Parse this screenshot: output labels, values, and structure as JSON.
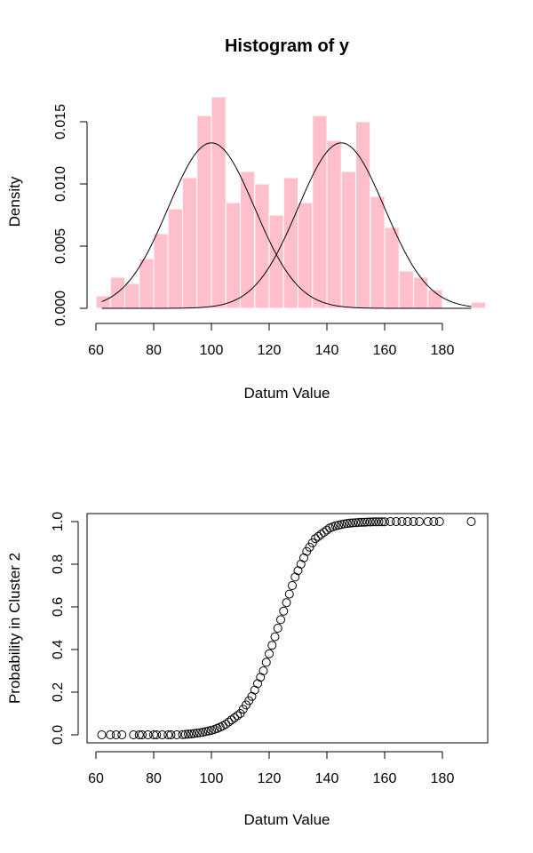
{
  "chart_data": [
    {
      "type": "bar",
      "title": "Histogram of y",
      "xlabel": "Datum Value",
      "ylabel": "Density",
      "xlim": [
        60,
        195
      ],
      "ylim": [
        0,
        0.017
      ],
      "xticks": [
        "60",
        "80",
        "100",
        "120",
        "140",
        "160",
        "180"
      ],
      "yticks": [
        "0.000",
        "0.005",
        "0.010",
        "0.015"
      ],
      "bar_color": "#ffc0cb",
      "bin_width": 5,
      "bins": [
        {
          "start": 60,
          "end": 65,
          "density": 0.001
        },
        {
          "start": 65,
          "end": 70,
          "density": 0.0025
        },
        {
          "start": 70,
          "end": 75,
          "density": 0.002
        },
        {
          "start": 75,
          "end": 80,
          "density": 0.004
        },
        {
          "start": 80,
          "end": 85,
          "density": 0.006
        },
        {
          "start": 85,
          "end": 90,
          "density": 0.008
        },
        {
          "start": 90,
          "end": 95,
          "density": 0.0105
        },
        {
          "start": 95,
          "end": 100,
          "density": 0.0155
        },
        {
          "start": 100,
          "end": 105,
          "density": 0.017
        },
        {
          "start": 105,
          "end": 110,
          "density": 0.0085
        },
        {
          "start": 110,
          "end": 115,
          "density": 0.011
        },
        {
          "start": 115,
          "end": 120,
          "density": 0.01
        },
        {
          "start": 120,
          "end": 125,
          "density": 0.0075
        },
        {
          "start": 125,
          "end": 130,
          "density": 0.0105
        },
        {
          "start": 130,
          "end": 135,
          "density": 0.0085
        },
        {
          "start": 135,
          "end": 140,
          "density": 0.0155
        },
        {
          "start": 140,
          "end": 145,
          "density": 0.0135
        },
        {
          "start": 145,
          "end": 150,
          "density": 0.011
        },
        {
          "start": 150,
          "end": 155,
          "density": 0.015
        },
        {
          "start": 155,
          "end": 160,
          "density": 0.009
        },
        {
          "start": 160,
          "end": 165,
          "density": 0.0065
        },
        {
          "start": 165,
          "end": 170,
          "density": 0.003
        },
        {
          "start": 170,
          "end": 175,
          "density": 0.0025
        },
        {
          "start": 175,
          "end": 180,
          "density": 0.0015
        },
        {
          "start": 180,
          "end": 185,
          "density": 0
        },
        {
          "start": 185,
          "end": 190,
          "density": 0
        },
        {
          "start": 190,
          "end": 195,
          "density": 0.0005
        }
      ],
      "curves": [
        {
          "type": "normal_density",
          "mean": 100,
          "sd": 15,
          "weight": 0.5,
          "x_range": [
            62,
            190
          ]
        },
        {
          "type": "normal_density",
          "mean": 145,
          "sd": 15,
          "weight": 0.5,
          "x_range": [
            62,
            190
          ]
        }
      ]
    },
    {
      "type": "scatter",
      "title": "",
      "xlabel": "Datum Value",
      "ylabel": "Probability in Cluster 2",
      "xlim": [
        60,
        195
      ],
      "ylim": [
        0,
        1
      ],
      "xticks": [
        "60",
        "80",
        "100",
        "120",
        "140",
        "160",
        "180"
      ],
      "yticks": [
        "0.0",
        "0.2",
        "0.4",
        "0.6",
        "0.8",
        "1.0"
      ],
      "marker": "open-circle",
      "x": [
        62,
        65,
        67,
        69,
        73,
        75,
        76,
        78,
        80,
        81,
        83,
        85,
        86,
        88,
        90,
        91,
        92,
        93,
        94,
        95,
        96,
        97,
        98,
        99,
        100,
        101,
        102,
        103,
        104,
        105,
        106,
        107,
        108,
        109,
        110,
        111,
        112,
        113,
        114,
        115,
        116,
        117,
        118,
        119,
        120,
        121,
        122,
        123,
        124,
        125,
        126,
        127,
        128,
        129,
        130,
        131,
        132,
        133,
        134,
        135,
        136,
        137,
        138,
        139,
        140,
        141,
        142,
        143,
        144,
        145,
        146,
        147,
        148,
        149,
        150,
        151,
        152,
        153,
        154,
        155,
        156,
        157,
        158,
        159,
        160,
        162,
        164,
        166,
        168,
        170,
        172,
        175,
        177,
        179,
        190
      ],
      "y": [
        0.0,
        0.0,
        0.0,
        0.0,
        0.0,
        0.0,
        0.0,
        0.0,
        0.0,
        0.0,
        0.0,
        0.0,
        0.0,
        0.0,
        0.001,
        0.002,
        0.003,
        0.004,
        0.006,
        0.008,
        0.01,
        0.012,
        0.015,
        0.018,
        0.021,
        0.025,
        0.03,
        0.036,
        0.042,
        0.05,
        0.06,
        0.07,
        0.08,
        0.09,
        0.1,
        0.12,
        0.14,
        0.16,
        0.18,
        0.21,
        0.24,
        0.27,
        0.3,
        0.34,
        0.38,
        0.42,
        0.46,
        0.5,
        0.54,
        0.58,
        0.62,
        0.66,
        0.7,
        0.74,
        0.77,
        0.8,
        0.83,
        0.86,
        0.88,
        0.9,
        0.92,
        0.93,
        0.94,
        0.95,
        0.96,
        0.97,
        0.975,
        0.98,
        0.983,
        0.986,
        0.989,
        0.991,
        0.993,
        0.994,
        0.995,
        0.996,
        0.997,
        0.997,
        0.998,
        0.998,
        0.999,
        0.999,
        0.999,
        0.999,
        0.999,
        1.0,
        1.0,
        1.0,
        1.0,
        1.0,
        1.0,
        1.0,
        1.0,
        1.0,
        1.0
      ]
    }
  ]
}
